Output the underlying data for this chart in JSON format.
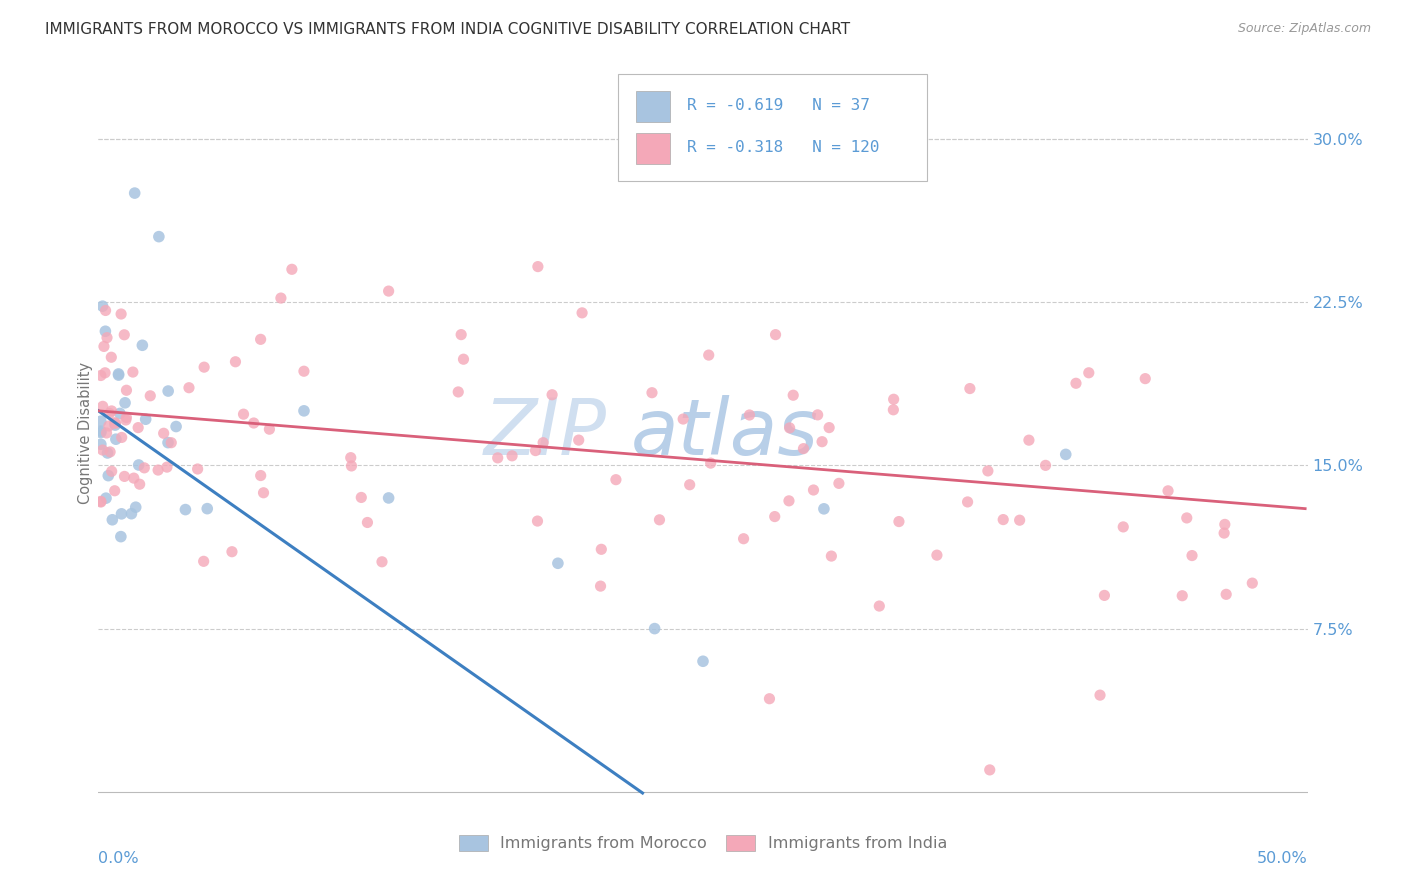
{
  "title": "IMMIGRANTS FROM MOROCCO VS IMMIGRANTS FROM INDIA COGNITIVE DISABILITY CORRELATION CHART",
  "source": "Source: ZipAtlas.com",
  "ylabel": "Cognitive Disability",
  "ytick_labels": [
    "7.5%",
    "15.0%",
    "22.5%",
    "30.0%"
  ],
  "ytick_values": [
    0.075,
    0.15,
    0.225,
    0.3
  ],
  "xlim": [
    0.0,
    0.5
  ],
  "ylim": [
    -0.005,
    0.335
  ],
  "legend_morocco": "Immigrants from Morocco",
  "legend_india": "Immigrants from India",
  "R_morocco": "-0.619",
  "N_morocco": "37",
  "R_india": "-0.318",
  "N_india": "120",
  "color_morocco": "#a8c4e0",
  "color_india": "#f4a8b8",
  "line_color_morocco": "#3d7fc1",
  "line_color_india": "#d9607a",
  "watermark_color": "#d0dff0",
  "background_color": "#ffffff",
  "grid_color": "#cccccc",
  "title_color": "#333333",
  "axis_label_color": "#5b9bd5",
  "legend_text_color": "#5b9bd5",
  "source_color": "#999999"
}
